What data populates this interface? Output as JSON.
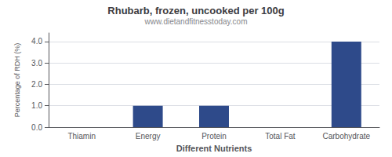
{
  "chart_data": {
    "type": "bar",
    "title": "Rhubarb, frozen, uncooked per 100g",
    "subtitle": "www.dietandfitnesstoday.com",
    "xlabel": "Different Nutrients",
    "ylabel": "Percentage of RDH (%)",
    "categories": [
      "Thiamin",
      "Energy",
      "Protein",
      "Total Fat",
      "Carbohydrate"
    ],
    "values": [
      0.0,
      1.0,
      1.0,
      0.0,
      4.0
    ],
    "color": "#2e4a8a",
    "ylim": [
      0,
      4.4
    ],
    "yticks": [
      {
        "value": 0.0,
        "label": "0.0"
      },
      {
        "value": 1.0,
        "label": "1.0"
      },
      {
        "value": 2.0,
        "label": "2.0"
      },
      {
        "value": 3.0,
        "label": "3.0"
      },
      {
        "value": 4.0,
        "label": "4.0"
      }
    ],
    "grid": true
  }
}
